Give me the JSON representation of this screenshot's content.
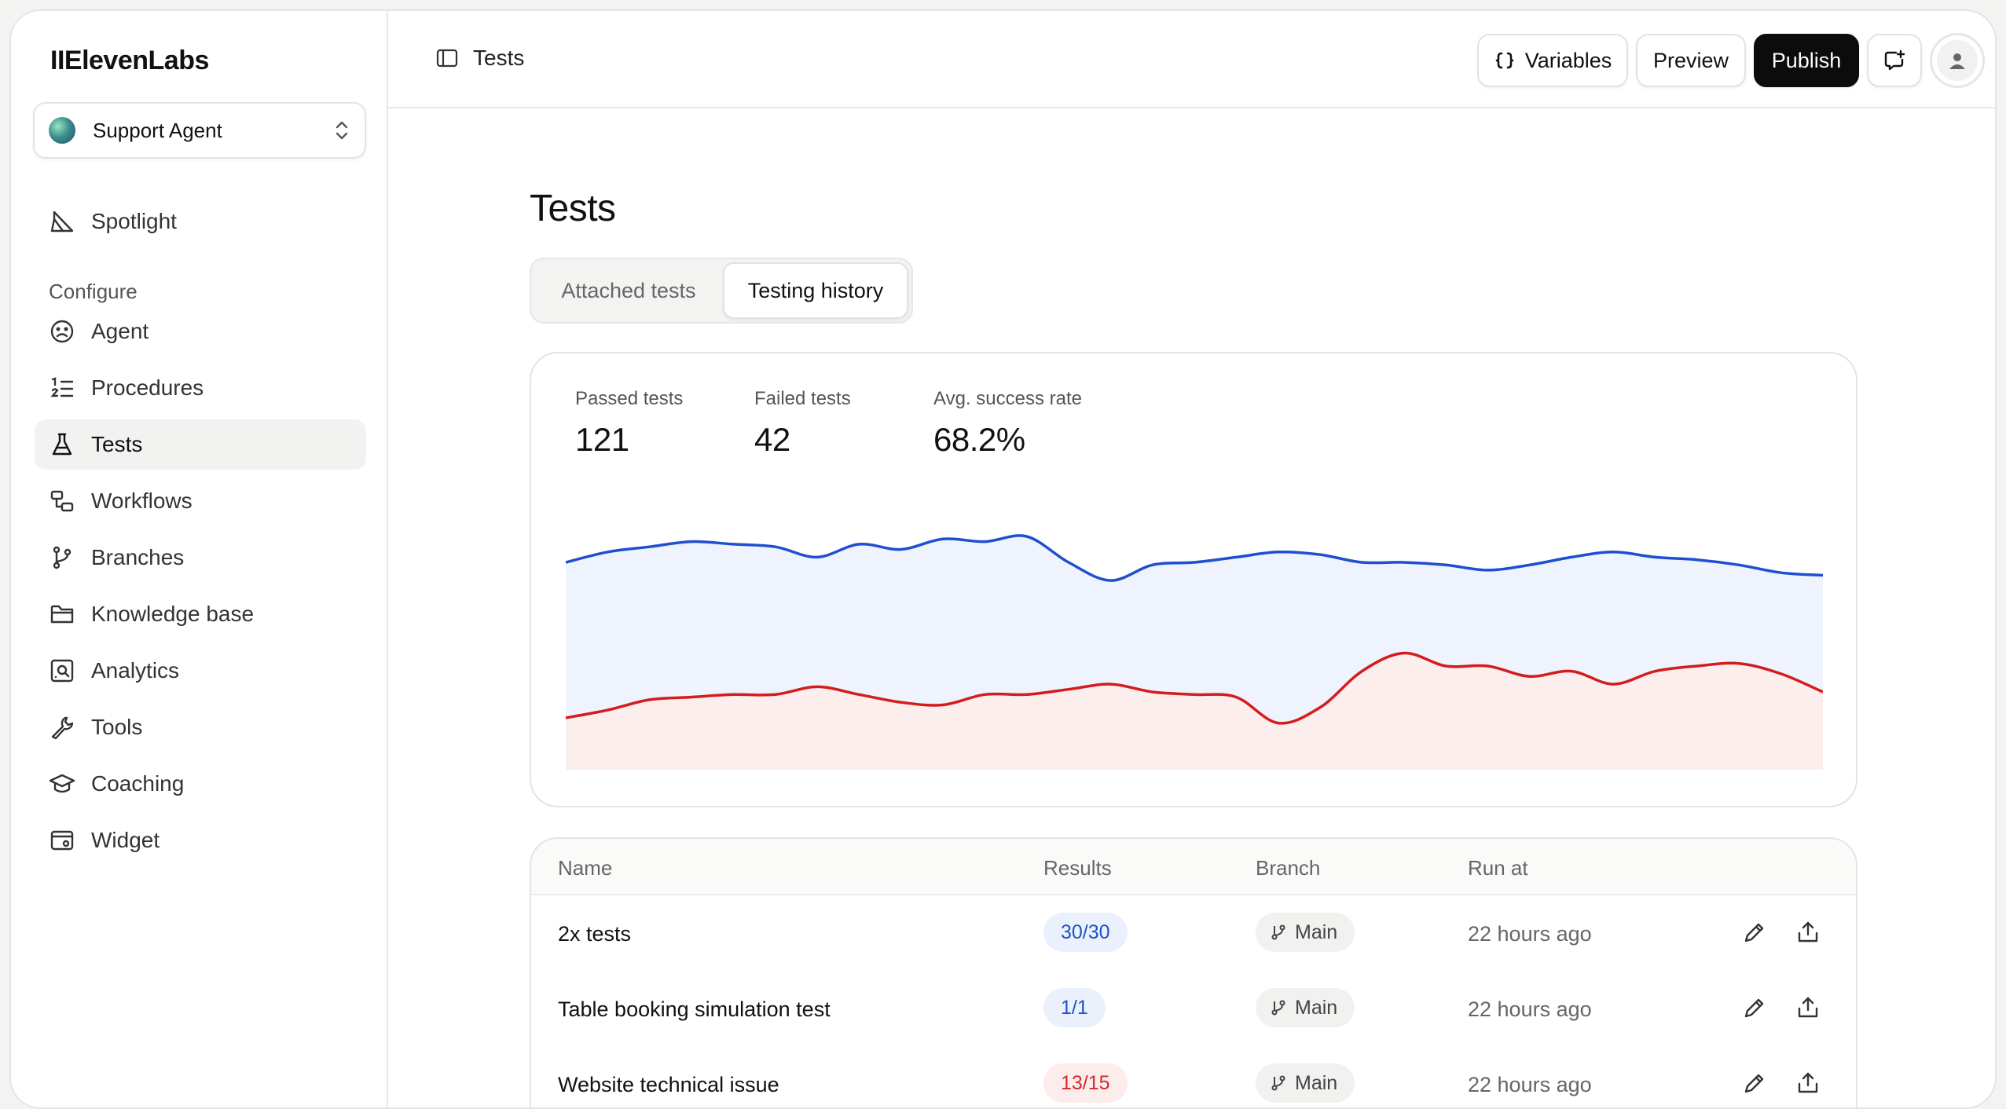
{
  "app": {
    "logo": "IIElevenLabs"
  },
  "sidebar": {
    "agent": "Support Agent",
    "spotlight": "Spotlight",
    "section": "Configure",
    "items": [
      {
        "label": "Agent",
        "icon": "agent-icon"
      },
      {
        "label": "Procedures",
        "icon": "procedures-icon"
      },
      {
        "label": "Tests",
        "icon": "flask-icon",
        "active": true
      },
      {
        "label": "Workflows",
        "icon": "workflows-icon"
      },
      {
        "label": "Branches",
        "icon": "branches-icon"
      },
      {
        "label": "Knowledge base",
        "icon": "folder-icon"
      },
      {
        "label": "Analytics",
        "icon": "analytics-icon"
      },
      {
        "label": "Tools",
        "icon": "wrench-icon"
      },
      {
        "label": "Coaching",
        "icon": "graduation-cap-icon"
      },
      {
        "label": "Widget",
        "icon": "widget-icon"
      }
    ]
  },
  "topbar": {
    "breadcrumb": "Tests",
    "variables": "Variables",
    "preview": "Preview",
    "publish": "Publish"
  },
  "main": {
    "title": "Tests",
    "tabs": [
      "Attached tests",
      "Testing history"
    ],
    "active_tab": "Testing history",
    "stats": {
      "passed_label": "Passed tests",
      "passed_value": "121",
      "failed_label": "Failed tests",
      "failed_value": "42",
      "rate_label": "Avg. success rate",
      "rate_value": "68.2%"
    }
  },
  "chart_data": {
    "type": "area",
    "x": [
      0,
      1,
      2,
      3,
      4,
      5,
      6,
      7,
      8,
      9,
      10,
      11,
      12,
      13,
      14,
      15,
      16,
      17,
      18,
      19,
      20,
      21,
      22,
      23,
      24,
      25,
      26,
      27,
      28,
      29,
      30
    ],
    "series": [
      {
        "color": "#1e4fd0",
        "fill": "#eef3fd",
        "values": [
          80,
          84,
          86,
          88,
          87,
          86,
          82,
          87,
          85,
          89,
          88,
          90,
          80,
          73,
          79,
          80,
          82,
          84,
          83,
          80,
          80,
          79,
          77,
          79,
          82,
          84,
          82,
          81,
          79,
          76,
          75
        ]
      },
      {
        "color": "#d51c1c",
        "fill": "#fdeeee",
        "values": [
          20,
          23,
          27,
          28,
          29,
          29,
          32,
          29,
          26,
          25,
          29,
          29,
          31,
          33,
          30,
          29,
          28,
          18,
          24,
          38,
          45,
          40,
          40,
          36,
          38,
          33,
          38,
          40,
          41,
          37,
          30
        ]
      }
    ],
    "ylim": [
      0,
      100
    ],
    "grid": false,
    "legend": "none"
  },
  "table": {
    "headers": [
      "Name",
      "Results",
      "Branch",
      "Run at"
    ],
    "rows": [
      {
        "name": "2x tests",
        "result": "30/30",
        "status": "pass",
        "branch": "Main",
        "run_at": "22 hours ago"
      },
      {
        "name": "Table booking simulation test",
        "result": "1/1",
        "status": "pass",
        "branch": "Main",
        "run_at": "22 hours ago"
      },
      {
        "name": "Website technical issue",
        "result": "13/15",
        "status": "fail",
        "branch": "Main",
        "run_at": "22 hours ago"
      }
    ]
  }
}
